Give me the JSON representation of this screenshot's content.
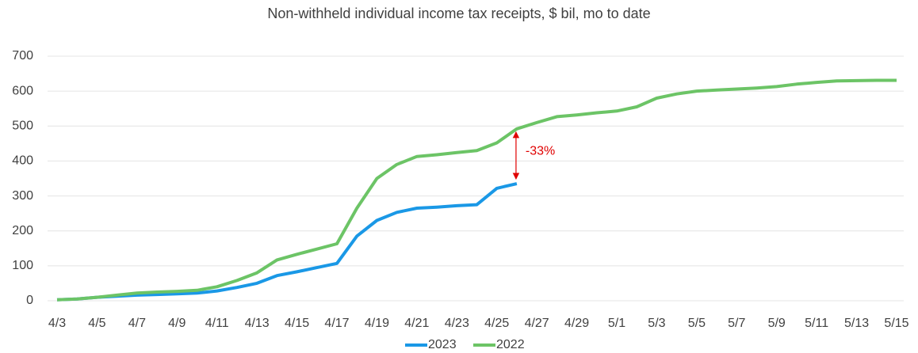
{
  "chart_data": {
    "type": "line",
    "title": "Non-withheld individual income tax receipts, $ bil, mo to date",
    "categories": [
      "4/3",
      null,
      "4/5",
      null,
      "4/7",
      null,
      "4/9",
      null,
      "4/11",
      null,
      "4/13",
      null,
      "4/15",
      null,
      "4/17",
      null,
      "4/19",
      null,
      "4/21",
      null,
      "4/23",
      null,
      "4/25",
      null,
      "4/27",
      null,
      "4/29",
      null,
      "5/1",
      null,
      "5/3",
      null,
      "5/5",
      null,
      "5/7",
      null,
      "5/9",
      null,
      "5/11",
      null,
      "5/13",
      null,
      "5/15"
    ],
    "series": [
      {
        "name": "2023",
        "color": "#1a98e6",
        "values": [
          3,
          5,
          10,
          13,
          16,
          18,
          20,
          22,
          28,
          38,
          50,
          72,
          83,
          95,
          107,
          185,
          230,
          253,
          265,
          268,
          272,
          275,
          322,
          335,
          null,
          null,
          null,
          null,
          null,
          null,
          null,
          null,
          null,
          null,
          null,
          null,
          null,
          null,
          null,
          null,
          null,
          null,
          null
        ]
      },
      {
        "name": "2022",
        "color": "#6cc466",
        "values": [
          3,
          5,
          10,
          16,
          22,
          25,
          27,
          30,
          40,
          58,
          80,
          117,
          133,
          148,
          163,
          265,
          350,
          390,
          413,
          418,
          424,
          430,
          452,
          492,
          510,
          527,
          532,
          538,
          543,
          555,
          580,
          592,
          600,
          603,
          606,
          609,
          613,
          620,
          625,
          629,
          630,
          631,
          631
        ]
      }
    ],
    "annotation": "-33%",
    "ylim": [
      0,
      700
    ],
    "yticks": [
      0,
      100,
      200,
      300,
      400,
      500,
      600,
      700
    ],
    "grid": true,
    "legend": "bottom"
  }
}
